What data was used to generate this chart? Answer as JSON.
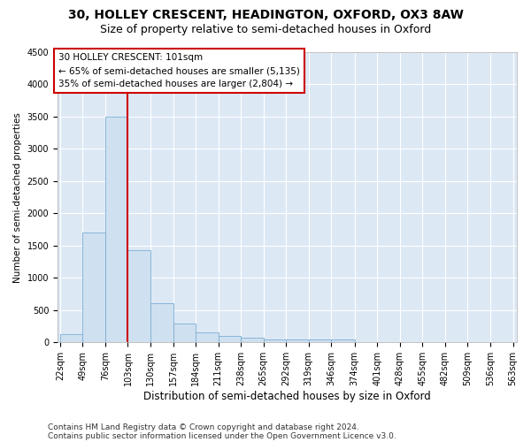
{
  "title_line1": "30, HOLLEY CRESCENT, HEADINGTON, OXFORD, OX3 8AW",
  "title_line2": "Size of property relative to semi-detached houses in Oxford",
  "xlabel": "Distribution of semi-detached houses by size in Oxford",
  "ylabel": "Number of semi-detached properties",
  "footer_line1": "Contains HM Land Registry data © Crown copyright and database right 2024.",
  "footer_line2": "Contains public sector information licensed under the Open Government Licence v3.0.",
  "annotation_line1": "30 HOLLEY CRESCENT: 101sqm",
  "annotation_line2": "← 65% of semi-detached houses are smaller (5,135)",
  "annotation_line3": "35% of semi-detached houses are larger (2,804) →",
  "property_size": 101,
  "bin_edges": [
    22,
    49,
    76,
    103,
    130,
    157,
    184,
    211,
    238,
    265,
    292,
    319,
    346,
    374,
    401,
    428,
    455,
    482,
    509,
    536,
    563
  ],
  "bar_heights": [
    130,
    1700,
    3500,
    1430,
    610,
    290,
    160,
    100,
    70,
    50,
    40,
    40,
    40,
    0,
    0,
    0,
    0,
    0,
    0,
    0
  ],
  "bar_color": "#cfe0f0",
  "bar_edge_color": "#7bafd4",
  "vline_color": "#cc0000",
  "vline_x": 103,
  "ylim": [
    0,
    4500
  ],
  "yticks": [
    0,
    500,
    1000,
    1500,
    2000,
    2500,
    3000,
    3500,
    4000,
    4500
  ],
  "annotation_box_facecolor": "#ffffff",
  "annotation_box_edgecolor": "#cc0000",
  "plot_bg_color": "#dde8f5",
  "fig_bg_color": "#ffffff",
  "grid_color": "#ffffff",
  "title1_fontsize": 10,
  "title2_fontsize": 9,
  "xlabel_fontsize": 8.5,
  "ylabel_fontsize": 7.5,
  "tick_fontsize": 7,
  "annotation_fontsize": 7.5,
  "footer_fontsize": 6.5
}
